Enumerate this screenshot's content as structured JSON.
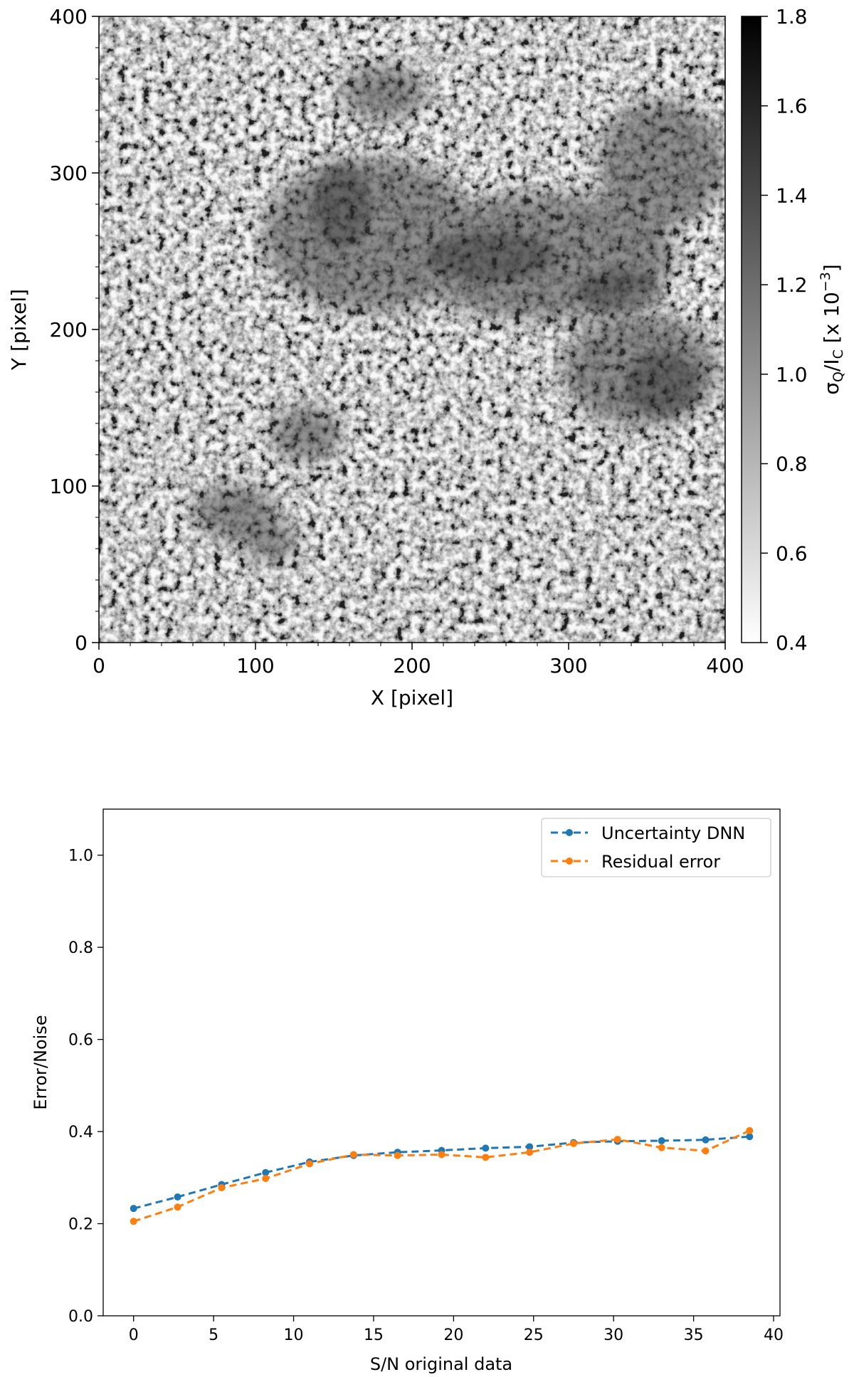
{
  "chart_data": [
    {
      "type": "heatmap",
      "xlabel": "X [pixel]",
      "ylabel": "Y [pixel]",
      "xlim": [
        0,
        400
      ],
      "ylim": [
        0,
        400
      ],
      "xticks": [
        "0",
        "100",
        "200",
        "300",
        "400"
      ],
      "yticks": [
        "0",
        "100",
        "200",
        "300",
        "400"
      ],
      "colorbar": {
        "label": "σQ/IC [x 10−3]",
        "range": [
          0.4,
          1.8
        ],
        "ticks": [
          "0.4",
          "0.6",
          "0.8",
          "1.0",
          "1.2",
          "1.4",
          "1.6",
          "1.8"
        ],
        "colormap": "gray_r"
      }
    },
    {
      "type": "line",
      "xlabel": "S/N original data",
      "ylabel": "Error/Noise",
      "xlim": [
        -1.9,
        40.4
      ],
      "ylim": [
        0.0,
        1.1
      ],
      "xticks": [
        "0",
        "5",
        "10",
        "15",
        "20",
        "25",
        "30",
        "35",
        "40"
      ],
      "yticks": [
        "0.0",
        "0.2",
        "0.4",
        "0.6",
        "0.8",
        "1.0"
      ],
      "legend": "top-right",
      "series": [
        {
          "name": "Uncertainty DNN",
          "color": "#1f77b4",
          "x": [
            0.0,
            2.75,
            5.5,
            8.25,
            11.0,
            13.75,
            16.5,
            19.25,
            22.0,
            24.75,
            27.5,
            30.25,
            33.0,
            35.75,
            38.5
          ],
          "y": [
            0.233,
            0.258,
            0.285,
            0.311,
            0.334,
            0.348,
            0.355,
            0.359,
            0.364,
            0.367,
            0.376,
            0.379,
            0.38,
            0.382,
            0.389
          ]
        },
        {
          "name": "Residual error",
          "color": "#ff7f0e",
          "x": [
            0.0,
            2.75,
            5.5,
            8.25,
            11.0,
            13.75,
            16.5,
            19.25,
            22.0,
            24.75,
            27.5,
            30.25,
            33.0,
            35.75,
            38.5
          ],
          "y": [
            0.205,
            0.236,
            0.278,
            0.298,
            0.33,
            0.35,
            0.348,
            0.35,
            0.344,
            0.355,
            0.374,
            0.383,
            0.365,
            0.358,
            0.402
          ]
        }
      ]
    }
  ]
}
